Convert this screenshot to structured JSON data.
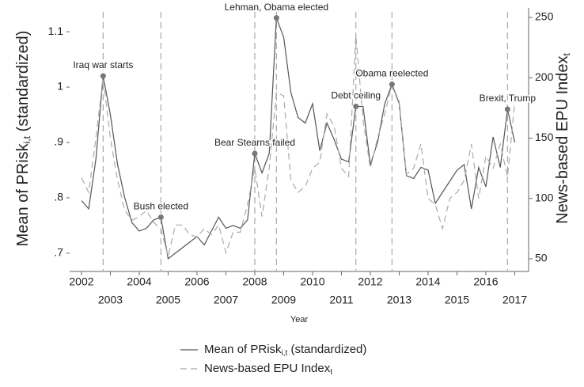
{
  "chart_data": {
    "type": "line",
    "xlabel": "Year",
    "ylabel": {
      "text": "Mean of PRisk",
      "sub": "i,t",
      "after": " (standardized)"
    },
    "y2label": {
      "text": "News-based EPU Index",
      "sub": "t"
    },
    "x": [
      2002,
      2002.25,
      2002.5,
      2002.75,
      2003,
      2003.25,
      2003.5,
      2003.75,
      2004,
      2004.25,
      2004.5,
      2004.75,
      2005,
      2005.25,
      2005.5,
      2005.75,
      2006,
      2006.25,
      2006.5,
      2006.75,
      2007,
      2007.25,
      2007.5,
      2007.75,
      2008,
      2008.25,
      2008.5,
      2008.75,
      2009,
      2009.25,
      2009.5,
      2009.75,
      2010,
      2010.25,
      2010.5,
      2010.75,
      2011,
      2011.25,
      2011.5,
      2011.75,
      2012,
      2012.25,
      2012.5,
      2012.75,
      2013,
      2013.25,
      2013.5,
      2013.75,
      2014,
      2014.25,
      2014.5,
      2014.75,
      2015,
      2015.25,
      2015.5,
      2015.75,
      2016,
      2016.25,
      2016.5,
      2016.75,
      2017
    ],
    "xlim": [
      2001.59,
      2017.48
    ],
    "xticks": [
      2002,
      2003,
      2004,
      2005,
      2006,
      2007,
      2008,
      2009,
      2010,
      2011,
      2012,
      2013,
      2014,
      2015,
      2016,
      2017
    ],
    "ylim": [
      0.667,
      1.143
    ],
    "yticks": [
      {
        "value": 0.7,
        "label": ".7"
      },
      {
        "value": 0.8,
        "label": ".8"
      },
      {
        "value": 0.9,
        "label": ".9"
      },
      1,
      1.1
    ],
    "y2lim": [
      39.5,
      257.9
    ],
    "y2ticks": [
      50,
      100,
      150,
      200,
      250
    ],
    "series": [
      {
        "name": "Mean of PRisk",
        "name_sub": "i,t",
        "name_after": " (standardized)",
        "color": "#555555",
        "dash": false,
        "axis": "y",
        "values": [
          0.795,
          0.78,
          0.87,
          1.02,
          0.95,
          0.86,
          0.8,
          0.755,
          0.74,
          0.745,
          0.76,
          0.765,
          0.69,
          0.7,
          0.71,
          0.72,
          0.73,
          0.715,
          0.74,
          0.765,
          0.745,
          0.75,
          0.745,
          0.76,
          0.88,
          0.845,
          0.88,
          1.125,
          1.09,
          0.99,
          0.945,
          0.935,
          0.97,
          0.885,
          0.935,
          0.905,
          0.87,
          0.865,
          0.965,
          0.965,
          0.86,
          0.9,
          0.97,
          1.005,
          0.97,
          0.84,
          0.835,
          0.855,
          0.85,
          0.79,
          0.81,
          0.83,
          0.85,
          0.86,
          0.78,
          0.855,
          0.82,
          0.91,
          0.855,
          0.96,
          0.9
        ]
      },
      {
        "name": "News-based EPU Index",
        "name_sub": "t",
        "name_after": "",
        "color": "#aaaaaa",
        "dash": true,
        "axis": "y2",
        "values": [
          117,
          105,
          150,
          200,
          150,
          115,
          90,
          82,
          85,
          90,
          80,
          75,
          52,
          78,
          78,
          70,
          68,
          75,
          70,
          78,
          55,
          72,
          72,
          95,
          125,
          85,
          125,
          188,
          185,
          115,
          105,
          110,
          125,
          130,
          170,
          160,
          125,
          118,
          235,
          165,
          125,
          150,
          170,
          195,
          180,
          120,
          125,
          145,
          100,
          95,
          75,
          100,
          105,
          115,
          145,
          100,
          135,
          125,
          145,
          118,
          180
        ]
      }
    ],
    "annotations": [
      {
        "x": 2002.75,
        "label": "Iraq war starts"
      },
      {
        "x": 2004.75,
        "label": "Bush elected"
      },
      {
        "x": 2008,
        "label": "Bear Stearns failed"
      },
      {
        "x": 2008.75,
        "label": "Lehman, Obama elected"
      },
      {
        "x": 2011.5,
        "label": "Debt ceiling"
      },
      {
        "x": 2012.75,
        "label": "Obama reelected"
      },
      {
        "x": 2016.75,
        "label": "Brexit, Trump"
      }
    ]
  }
}
